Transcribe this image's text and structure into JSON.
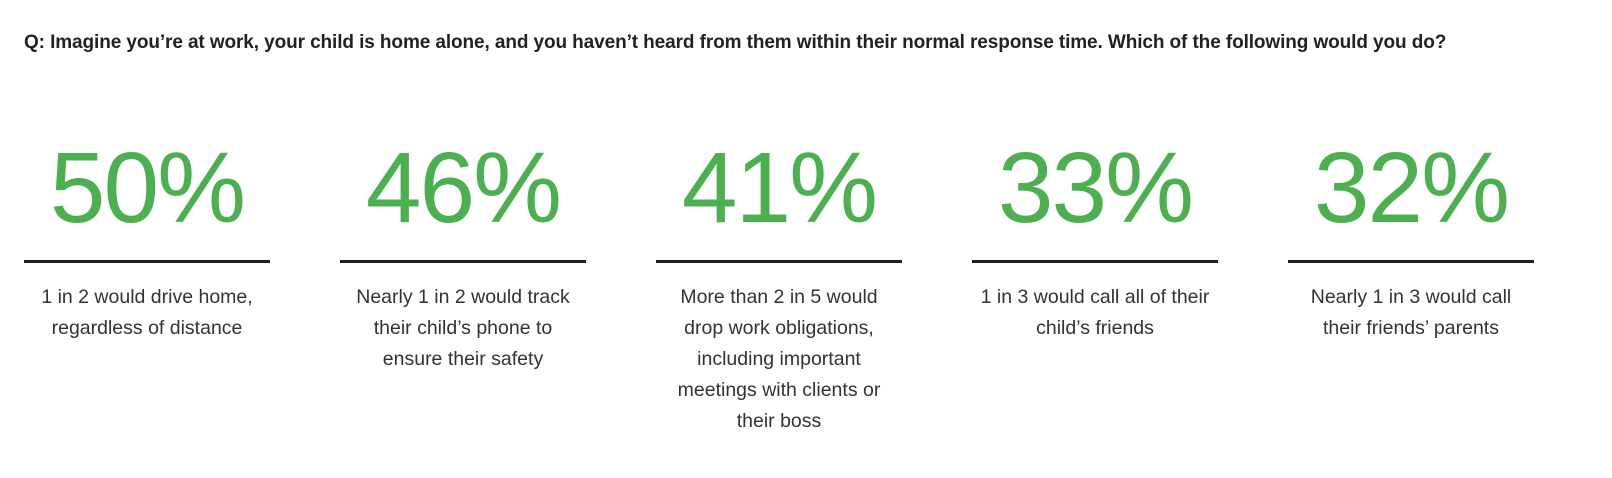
{
  "question": "Q: Imagine you’re at work, your child is home alone, and you haven’t heard from them within their normal response time. Which of the following would you do?",
  "accent_color": "#4caf50",
  "chart_data": {
    "type": "table",
    "title": "Q: Imagine you’re at work, your child is home alone, and you haven’t heard from them within their normal response time. Which of the following would you do?",
    "categories": [
      "1 in 2 would drive home, regardless of distance",
      "Nearly 1 in 2 would track their child’s phone to ensure their safety",
      "More than 2 in 5 would drop work obligations, including important meetings with clients or their boss",
      "1 in 3 would call all of their child’s friends",
      "Nearly 1 in 3 would call their friends’ parents"
    ],
    "values": [
      50,
      46,
      41,
      33,
      32
    ],
    "labels": [
      "50%",
      "46%",
      "41%",
      "33%",
      "32%"
    ],
    "unit": "%"
  }
}
